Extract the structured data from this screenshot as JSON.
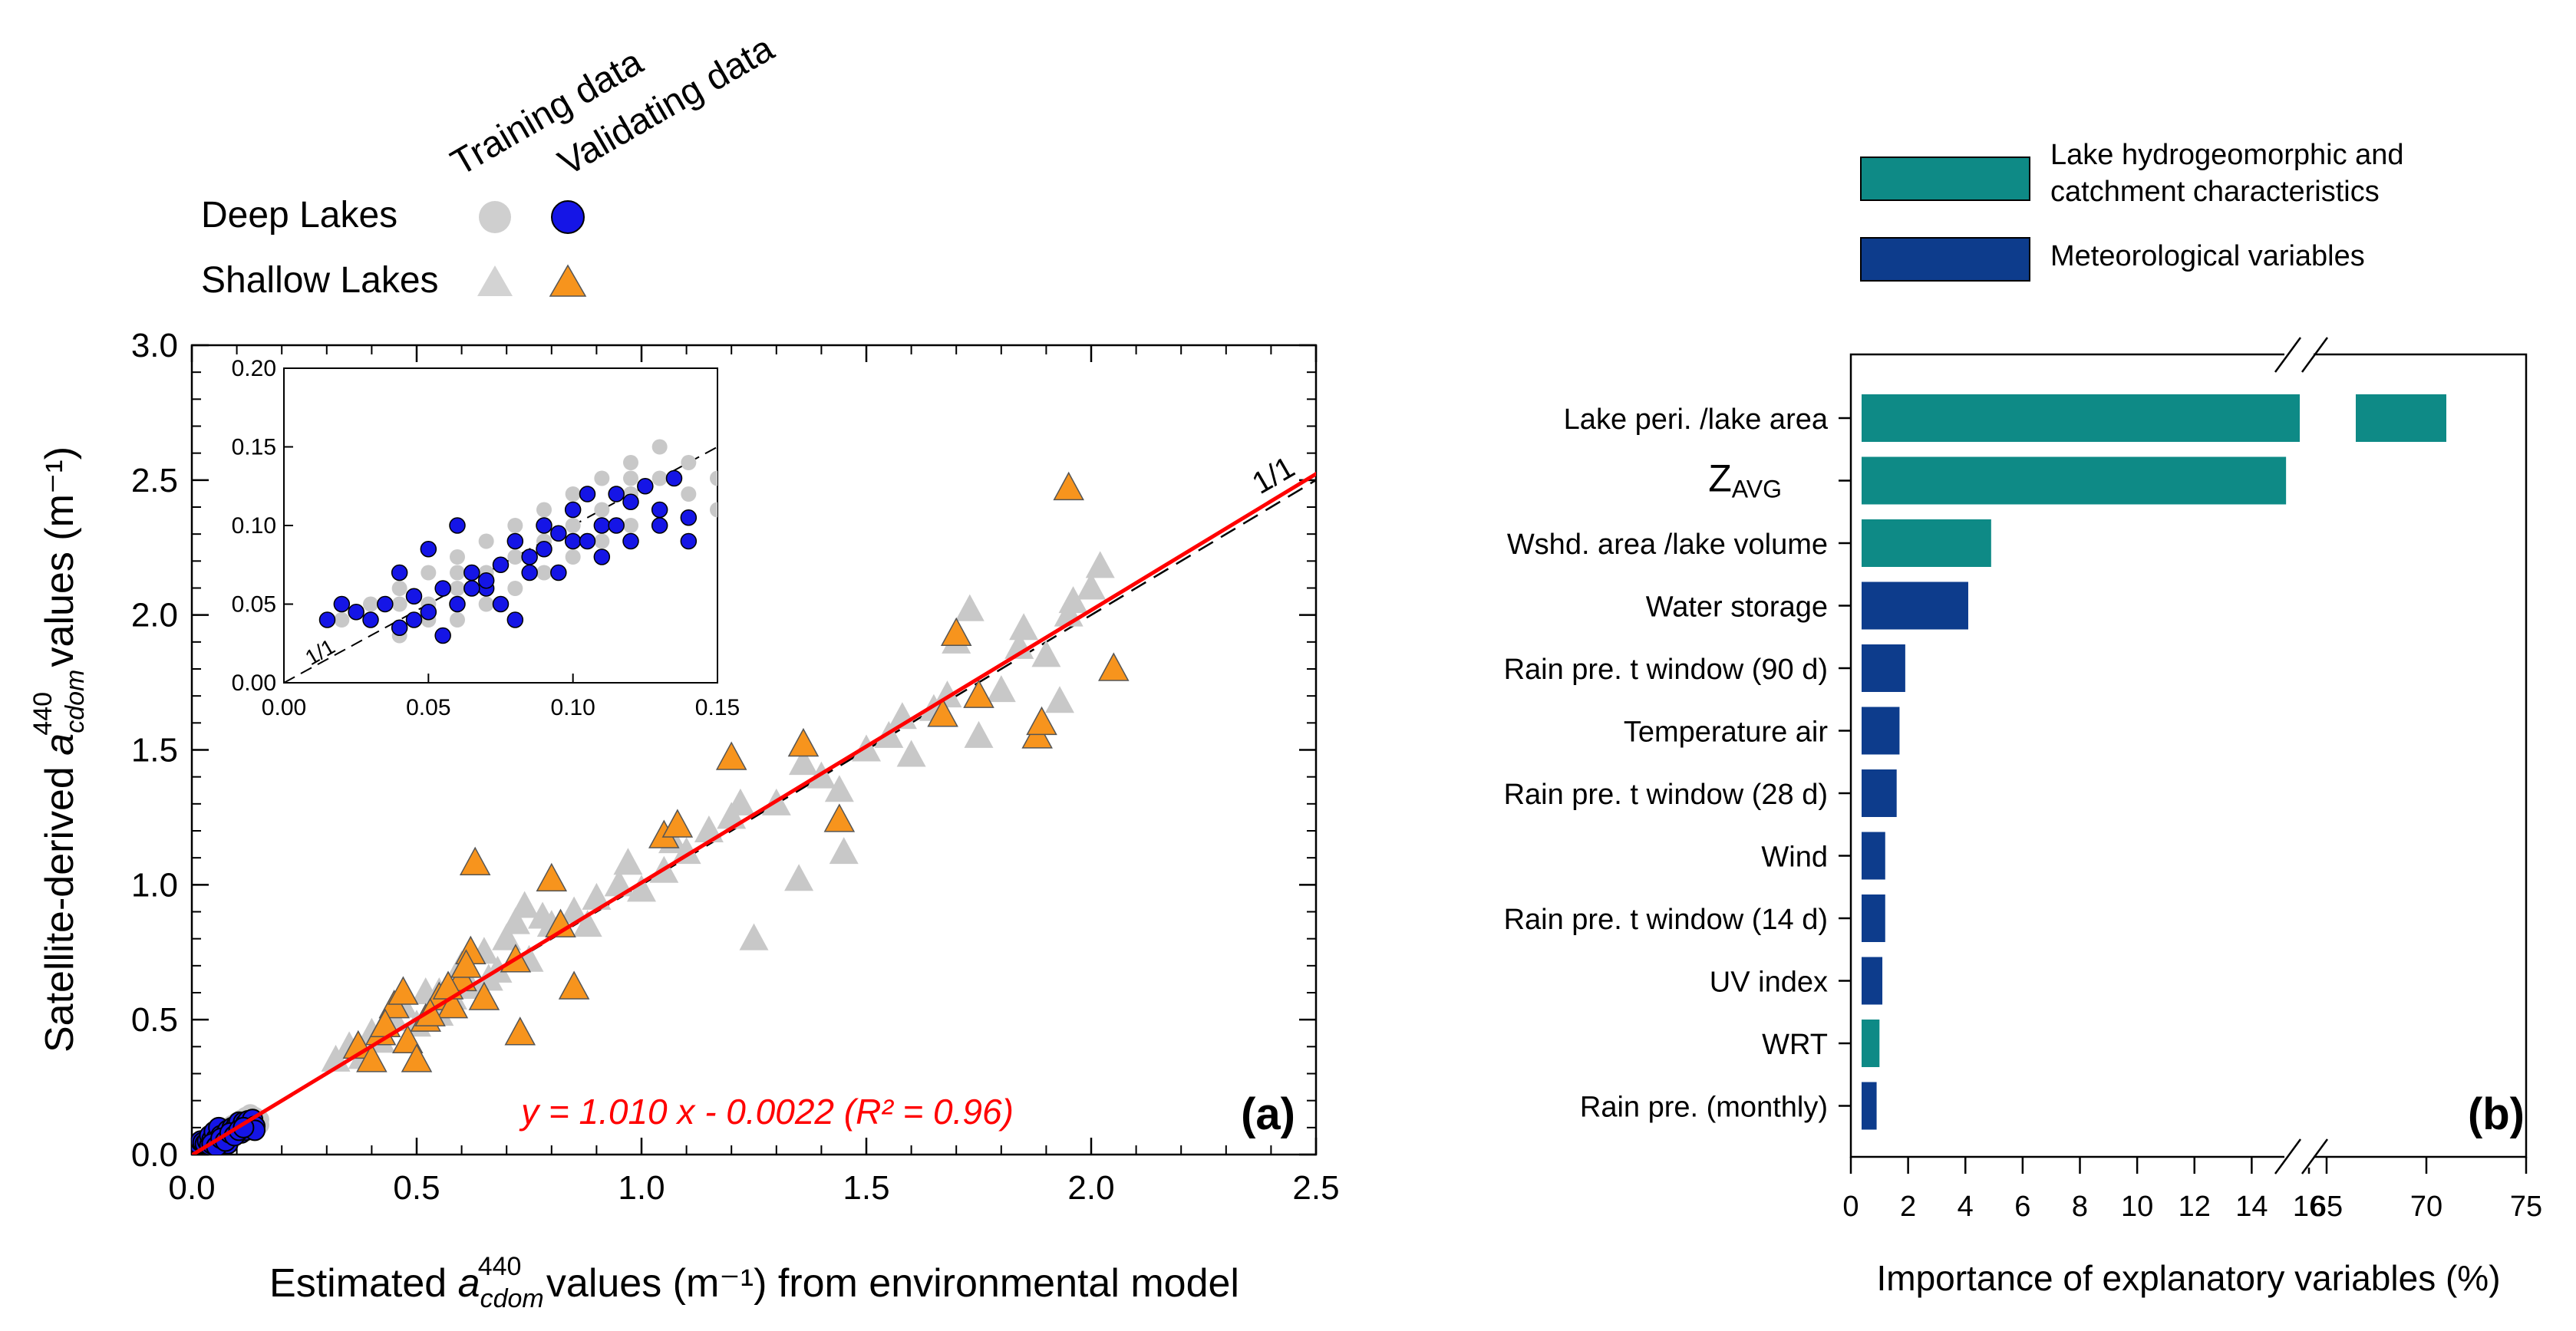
{
  "colors": {
    "training": "#c8c8c8",
    "validating_deep": "#1515e6",
    "validating_shallow": "#f7941d",
    "fit_line": "#ff0000",
    "teal": "#0e8a86",
    "navy": "#0d3c8c"
  },
  "legend_a": {
    "col_training": "Training data",
    "col_validating": "Validating data",
    "row_deep": "Deep Lakes",
    "row_shallow": "Shallow Lakes"
  },
  "legend_b": {
    "teal_label_1": "Lake hydrogeomorphic and",
    "teal_label_2": "catchment characteristics",
    "navy_label": "Meteorological variables"
  },
  "chart_data": [
    {
      "type": "scatter",
      "panel": "(a)",
      "xlabel": "Estimated a_cdom^440 values (m⁻¹) from environmental model",
      "ylabel": "Satellite-derived a_cdom^440 values (m⁻¹)",
      "xlim": [
        0,
        2.5
      ],
      "ylim": [
        0,
        3.0
      ],
      "xticks": [
        "0.0",
        "0.5",
        "1.0",
        "1.5",
        "2.0",
        "2.5"
      ],
      "yticks": [
        "0.0",
        "0.5",
        "1.0",
        "1.5",
        "2.0",
        "2.5",
        "3.0"
      ],
      "one_to_one_label": "1/1",
      "fit_equation": "y = 1.010 x - 0.0022 (R² = 0.96)",
      "fit": {
        "slope": 1.01,
        "intercept": -0.0022
      },
      "series": [
        {
          "name": "Shallow Lakes - Training",
          "marker": "triangle",
          "x": [
            0.32,
            0.35,
            0.38,
            0.4,
            0.42,
            0.45,
            0.47,
            0.5,
            0.52,
            0.55,
            0.58,
            0.6,
            0.62,
            0.65,
            0.68,
            0.7,
            0.72,
            0.75,
            0.78,
            0.8,
            0.85,
            0.9,
            0.95,
            1.0,
            1.05,
            1.1,
            1.15,
            1.2,
            1.25,
            1.3,
            1.35,
            1.4,
            1.45,
            1.5,
            1.55,
            1.6,
            1.65,
            1.7,
            1.75,
            1.8,
            1.85,
            1.9,
            1.95,
            2.0,
            2.02,
            0.55,
            0.66,
            0.74,
            0.88,
            0.97,
            1.07,
            1.22,
            1.36,
            1.44,
            1.58,
            1.68,
            1.73,
            1.84,
            1.93,
            1.96
          ],
          "y": [
            0.35,
            0.4,
            0.36,
            0.45,
            0.42,
            0.5,
            0.55,
            0.48,
            0.6,
            0.52,
            0.58,
            0.7,
            0.62,
            0.75,
            0.68,
            0.8,
            0.86,
            0.72,
            0.88,
            0.85,
            0.9,
            0.95,
            1.0,
            0.98,
            1.05,
            1.12,
            1.2,
            1.25,
            0.8,
            1.3,
            1.02,
            1.4,
            1.12,
            1.5,
            1.55,
            1.48,
            1.65,
            1.9,
            1.55,
            1.72,
            1.95,
            1.85,
            2.0,
            2.1,
            2.18,
            0.6,
            0.65,
            0.92,
            0.85,
            1.08,
            1.16,
            1.3,
            1.45,
            1.35,
            1.62,
            1.7,
            2.02,
            1.88,
            1.68,
            2.05
          ]
        },
        {
          "name": "Shallow Lakes - Validating",
          "marker": "triangle",
          "x": [
            0.37,
            0.4,
            0.42,
            0.45,
            0.47,
            0.48,
            0.5,
            0.52,
            0.55,
            0.58,
            0.6,
            0.62,
            0.63,
            0.72,
            0.73,
            0.8,
            0.82,
            0.85,
            1.05,
            1.08,
            1.2,
            1.36,
            1.44,
            1.67,
            1.7,
            1.75,
            1.88,
            1.89,
            1.95,
            2.05,
            0.43,
            0.53,
            0.57,
            0.61,
            0.65
          ],
          "y": [
            0.4,
            0.35,
            0.45,
            0.55,
            0.6,
            0.42,
            0.35,
            0.5,
            0.58,
            0.55,
            0.65,
            0.75,
            1.08,
            0.72,
            0.45,
            1.02,
            0.85,
            0.62,
            1.18,
            1.22,
            1.47,
            1.52,
            1.24,
            1.63,
            1.93,
            1.7,
            1.55,
            1.6,
            2.47,
            1.8,
            0.48,
            0.52,
            0.62,
            0.7,
            0.58
          ]
        },
        {
          "name": "Deep Lakes - Training",
          "marker": "circle",
          "x": [
            0.02,
            0.03,
            0.04,
            0.04,
            0.05,
            0.05,
            0.05,
            0.06,
            0.06,
            0.06,
            0.07,
            0.07,
            0.07,
            0.08,
            0.08,
            0.08,
            0.09,
            0.09,
            0.09,
            0.1,
            0.1,
            0.1,
            0.11,
            0.11,
            0.11,
            0.12,
            0.12,
            0.12,
            0.13,
            0.13,
            0.13,
            0.14,
            0.14,
            0.15,
            0.15,
            0.04,
            0.06,
            0.08,
            0.1,
            0.12
          ],
          "y": [
            0.04,
            0.05,
            0.03,
            0.06,
            0.04,
            0.07,
            0.05,
            0.06,
            0.08,
            0.04,
            0.07,
            0.09,
            0.05,
            0.08,
            0.1,
            0.06,
            0.09,
            0.11,
            0.07,
            0.1,
            0.12,
            0.08,
            0.11,
            0.13,
            0.09,
            0.12,
            0.14,
            0.1,
            0.13,
            0.15,
            0.11,
            0.14,
            0.12,
            0.13,
            0.11,
            0.05,
            0.07,
            0.09,
            0.11,
            0.13
          ]
        },
        {
          "name": "Deep Lakes - Validating",
          "marker": "circle",
          "x": [
            0.015,
            0.02,
            0.025,
            0.03,
            0.035,
            0.04,
            0.04,
            0.045,
            0.05,
            0.05,
            0.055,
            0.06,
            0.06,
            0.065,
            0.07,
            0.07,
            0.075,
            0.08,
            0.08,
            0.085,
            0.09,
            0.09,
            0.095,
            0.1,
            0.1,
            0.105,
            0.11,
            0.11,
            0.115,
            0.12,
            0.12,
            0.125,
            0.13,
            0.13,
            0.135,
            0.14,
            0.14,
            0.045,
            0.055,
            0.065,
            0.075,
            0.085,
            0.095,
            0.105,
            0.115
          ],
          "y": [
            0.04,
            0.05,
            0.045,
            0.04,
            0.05,
            0.035,
            0.07,
            0.055,
            0.045,
            0.085,
            0.06,
            0.05,
            0.1,
            0.07,
            0.06,
            0.065,
            0.075,
            0.04,
            0.09,
            0.07,
            0.085,
            0.1,
            0.095,
            0.11,
            0.09,
            0.12,
            0.1,
            0.08,
            0.12,
            0.115,
            0.09,
            0.125,
            0.1,
            0.11,
            0.13,
            0.105,
            0.09,
            0.04,
            0.03,
            0.06,
            0.05,
            0.08,
            0.07,
            0.09,
            0.1
          ]
        }
      ],
      "inset": {
        "xlim": [
          0,
          0.15
        ],
        "ylim": [
          0,
          0.2
        ],
        "xticks": [
          "0.00",
          "0.05",
          "0.10",
          "0.15"
        ],
        "yticks": [
          "0.00",
          "0.05",
          "0.10",
          "0.15",
          "0.20"
        ],
        "one_to_one_label": "1/1"
      }
    },
    {
      "type": "bar",
      "orientation": "horizontal",
      "panel": "(b)",
      "xlabel": "Importance of explanatory variables (%)",
      "broken_axis": {
        "segment1": [
          0,
          16
        ],
        "segment2": [
          65,
          75
        ]
      },
      "xticks": [
        "0",
        "2",
        "4",
        "6",
        "8",
        "10",
        "12",
        "14",
        "16",
        "65",
        "70",
        "75"
      ],
      "categories": [
        "Lake peri. /lake area",
        "Z",
        "Wshd. area /lake volume",
        "Water storage",
        "Rain pre. t window (90 d)",
        "Temperature  air",
        "Rain pre. t window (28 d)",
        "Wind",
        "Rain pre. t window (14 d)",
        "UV index",
        "WRT",
        "Rain pre. (monthly)"
      ],
      "zavg_subscript": "AVG",
      "values": [
        71,
        15.2,
        4.9,
        4.1,
        1.9,
        1.7,
        1.6,
        1.2,
        1.2,
        1.1,
        1.0,
        0.9
      ],
      "groups": [
        "teal",
        "teal",
        "teal",
        "navy",
        "navy",
        "navy",
        "navy",
        "navy",
        "navy",
        "navy",
        "teal",
        "navy"
      ]
    }
  ]
}
